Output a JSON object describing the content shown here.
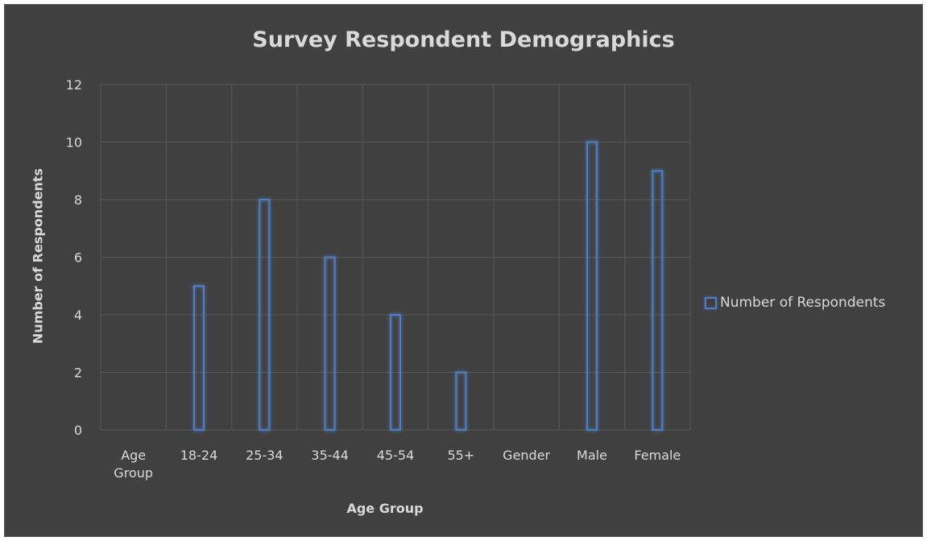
{
  "chart_data": {
    "type": "bar",
    "title": "Survey Respondent Demographics",
    "xlabel": "Age Group",
    "ylabel": "Number of Respondents",
    "categories": [
      "Age Group",
      "18-24",
      "25-34",
      "35-44",
      "45-54",
      "55+",
      "Gender",
      "Male",
      "Female"
    ],
    "series": [
      {
        "name": "Number of Respondents",
        "values": [
          null,
          5,
          8,
          6,
          4,
          2,
          null,
          10,
          9
        ]
      }
    ],
    "ylim": [
      0,
      12
    ],
    "yticks": [
      "0",
      "2",
      "4",
      "6",
      "8",
      "10",
      "12"
    ],
    "grid": true,
    "legend_position": "right",
    "colors": {
      "background": "#404040",
      "bar_outline": "#4f7fc0",
      "gridline": "#595959",
      "text": "#d9d9d9"
    }
  }
}
